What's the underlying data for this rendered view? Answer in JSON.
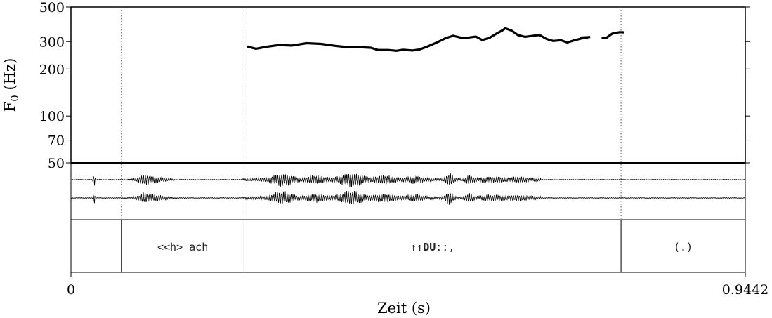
{
  "chart_data": {
    "type": "line",
    "title": "",
    "ylabel_main": "F",
    "ylabel_sub": "0",
    "ylabel_unit": " (Hz)",
    "xlabel": "Zeit (s)",
    "x_start_label": "0",
    "x_end_label": "0.9442",
    "xlim": [
      0,
      0.9442
    ],
    "ylim": [
      50,
      500
    ],
    "yscale": "log",
    "yticks": [
      50,
      70,
      100,
      200,
      300,
      500
    ],
    "ytick_labels": [
      "50",
      "70",
      "100",
      "200",
      "300",
      "500"
    ],
    "boundaries": [
      0.0706,
      0.2424,
      0.7702
    ],
    "intervals": [
      {
        "text": "",
        "start": 0,
        "end": 0.0706
      },
      {
        "text": "<<h> ach",
        "start": 0.0706,
        "end": 0.2424
      },
      {
        "prefix": "↑↑",
        "bold": "DU",
        "suffix": "::,",
        "start": 0.2424,
        "end": 0.7702
      },
      {
        "text": "(.)",
        "start": 0.7702,
        "end": 0.9442
      }
    ],
    "series": [
      {
        "segments": [
          [
            [
              0.247,
              279
            ],
            [
              0.259,
              270
            ],
            [
              0.272,
              277
            ],
            [
              0.291,
              285
            ],
            [
              0.309,
              283
            ],
            [
              0.33,
              293
            ],
            [
              0.35,
              290
            ],
            [
              0.369,
              282
            ],
            [
              0.382,
              278
            ],
            [
              0.399,
              277
            ],
            [
              0.42,
              274
            ],
            [
              0.43,
              265
            ],
            [
              0.444,
              265
            ],
            [
              0.456,
              262
            ],
            [
              0.465,
              266
            ],
            [
              0.478,
              263
            ],
            [
              0.488,
              267
            ],
            [
              0.5,
              280
            ],
            [
              0.513,
              297
            ],
            [
              0.525,
              316
            ],
            [
              0.535,
              327
            ],
            [
              0.546,
              318
            ],
            [
              0.556,
              318
            ],
            [
              0.567,
              323
            ],
            [
              0.576,
              307
            ],
            [
              0.586,
              317
            ],
            [
              0.596,
              338
            ],
            [
              0.605,
              356
            ],
            [
              0.608,
              365
            ],
            [
              0.617,
              353
            ],
            [
              0.626,
              330
            ],
            [
              0.636,
              322
            ],
            [
              0.647,
              327
            ],
            [
              0.656,
              331
            ],
            [
              0.666,
              312
            ],
            [
              0.675,
              303
            ],
            [
              0.686,
              306
            ],
            [
              0.695,
              296
            ],
            [
              0.705,
              306
            ],
            [
              0.716,
              315
            ],
            [
              0.723,
              316
            ]
          ],
          [
            [
              0.715,
              316
            ],
            [
              0.724,
              315
            ]
          ],
          [
            [
              0.713,
              318
            ],
            [
              0.727,
              321
            ]
          ],
          [
            [
              0.743,
              318
            ],
            [
              0.75,
              318
            ],
            [
              0.758,
              338
            ],
            [
              0.768,
              345
            ],
            [
              0.775,
              344
            ]
          ]
        ]
      }
    ]
  }
}
